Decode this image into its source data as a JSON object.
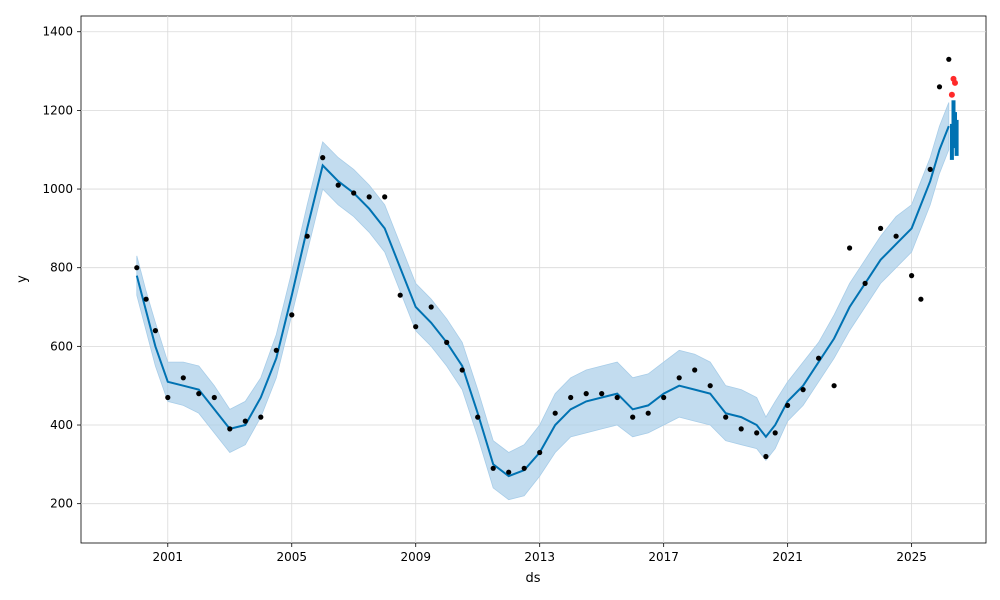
{
  "chart_data": {
    "type": "scatter",
    "title": "",
    "xlabel": "ds",
    "ylabel": "y",
    "xlim": [
      1998.2,
      2027.4
    ],
    "ylim": [
      100,
      1440
    ],
    "xticks": [
      2001,
      2005,
      2009,
      2013,
      2017,
      2021,
      2025
    ],
    "yticks": [
      200,
      400,
      600,
      800,
      1000,
      1200,
      1400
    ],
    "grid": true,
    "colors": {
      "observed": "#000000",
      "forecast": "#0072B2",
      "interval": "#a8cde8",
      "highlight": "#ff2a2a"
    },
    "x": [
      2000.0,
      2000.3,
      2000.6,
      2001.0,
      2001.5,
      2002.0,
      2002.5,
      2003.0,
      2003.5,
      2004.0,
      2004.5,
      2005.0,
      2005.5,
      2006.0,
      2006.5,
      2007.0,
      2007.5,
      2008.0,
      2008.5,
      2009.0,
      2009.5,
      2010.0,
      2010.5,
      2011.0,
      2011.5,
      2012.0,
      2012.5,
      2013.0,
      2013.5,
      2014.0,
      2014.5,
      2015.0,
      2015.5,
      2016.0,
      2016.5,
      2017.0,
      2017.5,
      2018.0,
      2018.5,
      2019.0,
      2019.5,
      2020.0,
      2020.3,
      2020.6,
      2021.0,
      2021.5,
      2022.0,
      2022.5,
      2023.0,
      2023.5,
      2024.0,
      2024.5,
      2025.0,
      2025.3,
      2025.6,
      2025.9,
      2026.2
    ],
    "observed": [
      800,
      720,
      640,
      470,
      520,
      480,
      470,
      390,
      410,
      420,
      590,
      680,
      880,
      1080,
      1010,
      990,
      980,
      980,
      730,
      650,
      700,
      610,
      540,
      420,
      290,
      280,
      290,
      330,
      430,
      470,
      480,
      480,
      470,
      420,
      430,
      470,
      520,
      540,
      500,
      420,
      390,
      380,
      320,
      380,
      450,
      490,
      570,
      500,
      850,
      760,
      900,
      880,
      780,
      720,
      1050,
      1260,
      1330
    ],
    "series": [
      {
        "name": "",
        "values": [
          780,
          690,
          600,
          510,
          500,
          490,
          440,
          390,
          400,
          470,
          570,
          730,
          900,
          1060,
          1020,
          990,
          950,
          900,
          800,
          700,
          660,
          610,
          550,
          430,
          300,
          270,
          285,
          330,
          400,
          440,
          460,
          470,
          480,
          440,
          450,
          480,
          500,
          490,
          480,
          430,
          420,
          400,
          370,
          400,
          460,
          500,
          560,
          620,
          700,
          760,
          820,
          860,
          900,
          960,
          1020,
          1100,
          1160
        ]
      }
    ],
    "interval_upper": [
      830,
      740,
      660,
      560,
      560,
      550,
      500,
      440,
      460,
      520,
      630,
      790,
      960,
      1120,
      1080,
      1050,
      1010,
      960,
      860,
      760,
      720,
      670,
      610,
      490,
      360,
      330,
      350,
      400,
      480,
      520,
      540,
      550,
      560,
      520,
      530,
      560,
      590,
      580,
      560,
      500,
      490,
      470,
      420,
      460,
      510,
      560,
      610,
      680,
      760,
      820,
      880,
      930,
      960,
      1020,
      1080,
      1160,
      1220
    ],
    "interval_lower": [
      730,
      640,
      550,
      460,
      450,
      430,
      380,
      330,
      350,
      420,
      520,
      680,
      840,
      1000,
      960,
      930,
      890,
      840,
      740,
      640,
      600,
      550,
      490,
      370,
      240,
      210,
      220,
      270,
      330,
      370,
      380,
      390,
      400,
      370,
      380,
      400,
      420,
      410,
      400,
      360,
      350,
      340,
      310,
      340,
      410,
      450,
      510,
      570,
      640,
      700,
      760,
      800,
      840,
      900,
      960,
      1040,
      1100
    ],
    "forecast_tail": {
      "x": [
        2026.3,
        2026.35,
        2026.4,
        2026.45
      ],
      "values": [
        1120,
        1180,
        1150,
        1130
      ]
    },
    "highlight_points": {
      "x": [
        2026.3,
        2026.35,
        2026.4
      ],
      "values": [
        1240,
        1280,
        1270
      ]
    }
  }
}
